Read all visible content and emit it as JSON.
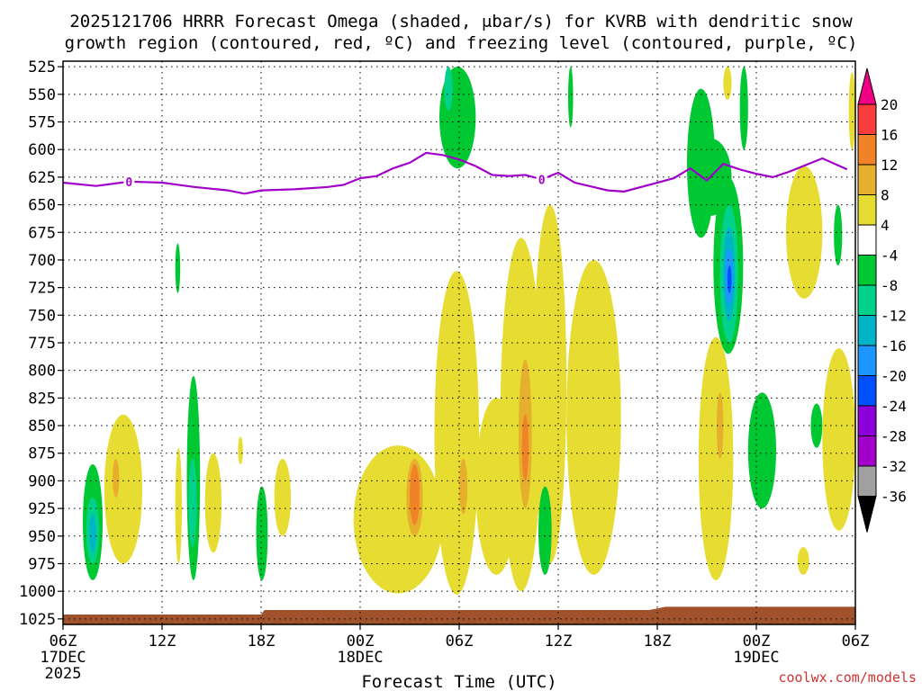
{
  "title_line1": "2025121706 HRRR Forecast Omega (shaded, μbar/s) for KVRB with dendritic snow",
  "title_line2": "growth region (contoured, red, ºC) and freezing level (contoured, purple, ºC)",
  "credit": "coolwx.com/models",
  "colors": {
    "yellow": "#e6dc32",
    "orange_light": "#e6af2d",
    "orange": "#f08228",
    "green": "#00c832",
    "teal": "#00d28c",
    "cyan": "#00b4c8",
    "blue_light": "#1e96ff",
    "blue": "#0050ff",
    "purple": "#a000c8",
    "red": "#fa3c3c",
    "magenta": "#f00082",
    "gray": "#a0a0a0",
    "ground": "#a0522d",
    "freezing_line": "#a000c8"
  },
  "chart_data": {
    "type": "heatmap",
    "title": "2025121706 HRRR Forecast Omega (shaded, μbar/s) for KVRB with dendritic snow growth region (contoured, red, ºC) and freezing level (contoured, purple, ºC)",
    "xlabel": "Forecast Time (UTC)",
    "ylabel": "",
    "x_range_hours": [
      0,
      48
    ],
    "x_ticks": [
      {
        "h": 0,
        "label": "06Z",
        "sub": "17DEC",
        "sub2": "2025"
      },
      {
        "h": 6,
        "label": "12Z"
      },
      {
        "h": 12,
        "label": "18Z"
      },
      {
        "h": 18,
        "label": "00Z",
        "sub": "18DEC"
      },
      {
        "h": 24,
        "label": "06Z"
      },
      {
        "h": 30,
        "label": "12Z"
      },
      {
        "h": 36,
        "label": "18Z"
      },
      {
        "h": 42,
        "label": "00Z",
        "sub": "19DEC"
      },
      {
        "h": 48,
        "label": "06Z"
      }
    ],
    "y_ticks_hpa": [
      525,
      550,
      575,
      600,
      625,
      650,
      675,
      700,
      725,
      750,
      775,
      800,
      825,
      850,
      875,
      900,
      925,
      950,
      975,
      1000,
      1025
    ],
    "grid": true,
    "colorbar": {
      "labels": [
        "20",
        "16",
        "12",
        "8",
        "4",
        "-4",
        "-8",
        "-12",
        "-16",
        "-20",
        "-24",
        "-28",
        "-32",
        "-36"
      ],
      "bands": [
        "#f00082",
        "#fa3c3c",
        "#f08228",
        "#e6af2d",
        "#e6dc32",
        "#ffffff",
        "#00c832",
        "#00d28c",
        "#00b4c8",
        "#1e96ff",
        "#0050ff",
        "#8c00dc",
        "#a000c8",
        "#a0a0a0",
        "#000000"
      ]
    },
    "freezing_level": {
      "label": "0",
      "points": [
        [
          0,
          630
        ],
        [
          2,
          633
        ],
        [
          4,
          629
        ],
        [
          6,
          630
        ],
        [
          8,
          634
        ],
        [
          10,
          637
        ],
        [
          11,
          640
        ],
        [
          12,
          637
        ],
        [
          14,
          636
        ],
        [
          16,
          634
        ],
        [
          17,
          632
        ],
        [
          18,
          626
        ],
        [
          19,
          624
        ],
        [
          20,
          617
        ],
        [
          21,
          612
        ],
        [
          22,
          603
        ],
        [
          23,
          605
        ],
        [
          24,
          609
        ],
        [
          25,
          615
        ],
        [
          26,
          623
        ],
        [
          27,
          624
        ],
        [
          28,
          623
        ],
        [
          29,
          627
        ],
        [
          30,
          621
        ],
        [
          31,
          630
        ],
        [
          33,
          637
        ],
        [
          34,
          638
        ],
        [
          35,
          634
        ],
        [
          36,
          630
        ],
        [
          37,
          626
        ],
        [
          38,
          617
        ],
        [
          39,
          628
        ],
        [
          40,
          613
        ],
        [
          41,
          618
        ],
        [
          42,
          622
        ],
        [
          43,
          625
        ],
        [
          44,
          620
        ],
        [
          46,
          608
        ],
        [
          47.5,
          618
        ]
      ],
      "label_positions": [
        4,
        29
      ]
    },
    "omega_regions": [
      {
        "level": "yellow",
        "t0": 22.5,
        "t1": 25.2,
        "p0": 710,
        "p1": 1003
      },
      {
        "level": "yellow",
        "t0": 17.6,
        "t1": 23.0,
        "p0": 868,
        "p1": 1002
      },
      {
        "level": "yellow",
        "t0": 25.0,
        "t1": 27.5,
        "p0": 825,
        "p1": 985
      },
      {
        "level": "yellow",
        "t0": 26.5,
        "t1": 29.0,
        "p0": 680,
        "p1": 1000
      },
      {
        "level": "yellow",
        "t0": 28.5,
        "t1": 30.5,
        "p0": 650,
        "p1": 975
      },
      {
        "level": "yellow",
        "t0": 30.5,
        "t1": 33.8,
        "p0": 700,
        "p1": 985
      },
      {
        "level": "yellow",
        "t0": 2.5,
        "t1": 4.8,
        "p0": 840,
        "p1": 975
      },
      {
        "level": "yellow",
        "t0": 6.8,
        "t1": 7.2,
        "p0": 870,
        "p1": 975
      },
      {
        "level": "yellow",
        "t0": 8.6,
        "t1": 9.6,
        "p0": 875,
        "p1": 965
      },
      {
        "level": "yellow",
        "t0": 10.6,
        "t1": 10.9,
        "p0": 860,
        "p1": 885
      },
      {
        "level": "yellow",
        "t0": 12.8,
        "t1": 13.8,
        "p0": 880,
        "p1": 950
      },
      {
        "level": "yellow",
        "t0": 38.5,
        "t1": 40.6,
        "p0": 770,
        "p1": 990
      },
      {
        "level": "yellow",
        "t0": 43.8,
        "t1": 46.0,
        "p0": 615,
        "p1": 735
      },
      {
        "level": "yellow",
        "t0": 46.0,
        "t1": 48.0,
        "p0": 780,
        "p1": 945
      },
      {
        "level": "yellow",
        "t0": 40.0,
        "t1": 40.5,
        "p0": 525,
        "p1": 555
      },
      {
        "level": "yellow",
        "t0": 44.5,
        "t1": 45.2,
        "p0": 960,
        "p1": 985
      },
      {
        "level": "yellow",
        "t0": 47.6,
        "t1": 48.0,
        "p0": 530,
        "p1": 600
      },
      {
        "level": "orange_light",
        "t0": 20.8,
        "t1": 21.8,
        "p0": 880,
        "p1": 950
      },
      {
        "level": "orange",
        "t0": 21.0,
        "t1": 21.6,
        "p0": 885,
        "p1": 940
      },
      {
        "level": "orange_light",
        "t0": 24.0,
        "t1": 24.5,
        "p0": 880,
        "p1": 930
      },
      {
        "level": "orange_light",
        "t0": 27.6,
        "t1": 28.4,
        "p0": 790,
        "p1": 925
      },
      {
        "level": "orange",
        "t0": 27.8,
        "t1": 28.2,
        "p0": 840,
        "p1": 900
      },
      {
        "level": "orange_light",
        "t0": 3.0,
        "t1": 3.4,
        "p0": 880,
        "p1": 915
      },
      {
        "level": "orange_light",
        "t0": 39.6,
        "t1": 40.0,
        "p0": 820,
        "p1": 880
      },
      {
        "level": "green",
        "t0": 22.8,
        "t1": 25.0,
        "p0": 525,
        "p1": 617
      },
      {
        "level": "green",
        "t0": 38.0,
        "t1": 40.5,
        "p0": 590,
        "p1": 660
      },
      {
        "level": "green",
        "t0": 39.4,
        "t1": 41.2,
        "p0": 625,
        "p1": 785
      },
      {
        "level": "green",
        "t0": 37.8,
        "t1": 39.5,
        "p0": 545,
        "p1": 680
      },
      {
        "level": "green",
        "t0": 41.0,
        "t1": 41.5,
        "p0": 525,
        "p1": 600
      },
      {
        "level": "green",
        "t0": 1.2,
        "t1": 2.4,
        "p0": 885,
        "p1": 990
      },
      {
        "level": "green",
        "t0": 7.5,
        "t1": 8.3,
        "p0": 805,
        "p1": 990
      },
      {
        "level": "green",
        "t0": 11.7,
        "t1": 12.4,
        "p0": 905,
        "p1": 990
      },
      {
        "level": "green",
        "t0": 28.8,
        "t1": 29.6,
        "p0": 905,
        "p1": 985
      },
      {
        "level": "green",
        "t0": 41.5,
        "t1": 43.2,
        "p0": 820,
        "p1": 925
      },
      {
        "level": "green",
        "t0": 45.3,
        "t1": 46.0,
        "p0": 830,
        "p1": 870
      },
      {
        "level": "green",
        "t0": 46.7,
        "t1": 47.2,
        "p0": 650,
        "p1": 705
      },
      {
        "level": "green",
        "t0": 6.8,
        "t1": 7.1,
        "p0": 685,
        "p1": 730
      },
      {
        "level": "green",
        "t0": 30.6,
        "t1": 30.9,
        "p0": 525,
        "p1": 580
      },
      {
        "level": "teal",
        "t0": 23.1,
        "t1": 23.6,
        "p0": 525,
        "p1": 565
      },
      {
        "level": "teal",
        "t0": 39.8,
        "t1": 40.9,
        "p0": 650,
        "p1": 775
      },
      {
        "level": "teal",
        "t0": 1.4,
        "t1": 2.2,
        "p0": 915,
        "p1": 975
      },
      {
        "level": "teal",
        "t0": 7.6,
        "t1": 8.1,
        "p0": 880,
        "p1": 960
      },
      {
        "level": "cyan",
        "t0": 40.0,
        "t1": 40.7,
        "p0": 670,
        "p1": 755
      },
      {
        "level": "cyan",
        "t0": 1.6,
        "t1": 2.0,
        "p0": 930,
        "p1": 965
      },
      {
        "level": "blue_light",
        "t0": 40.1,
        "t1": 40.6,
        "p0": 690,
        "p1": 740
      },
      {
        "level": "blue",
        "t0": 40.25,
        "t1": 40.5,
        "p0": 705,
        "p1": 730
      }
    ],
    "ground": [
      [
        0,
        1021
      ],
      [
        12,
        1021
      ],
      [
        12.2,
        1017
      ],
      [
        35.5,
        1017
      ],
      [
        36.5,
        1014
      ],
      [
        48,
        1014
      ]
    ]
  }
}
